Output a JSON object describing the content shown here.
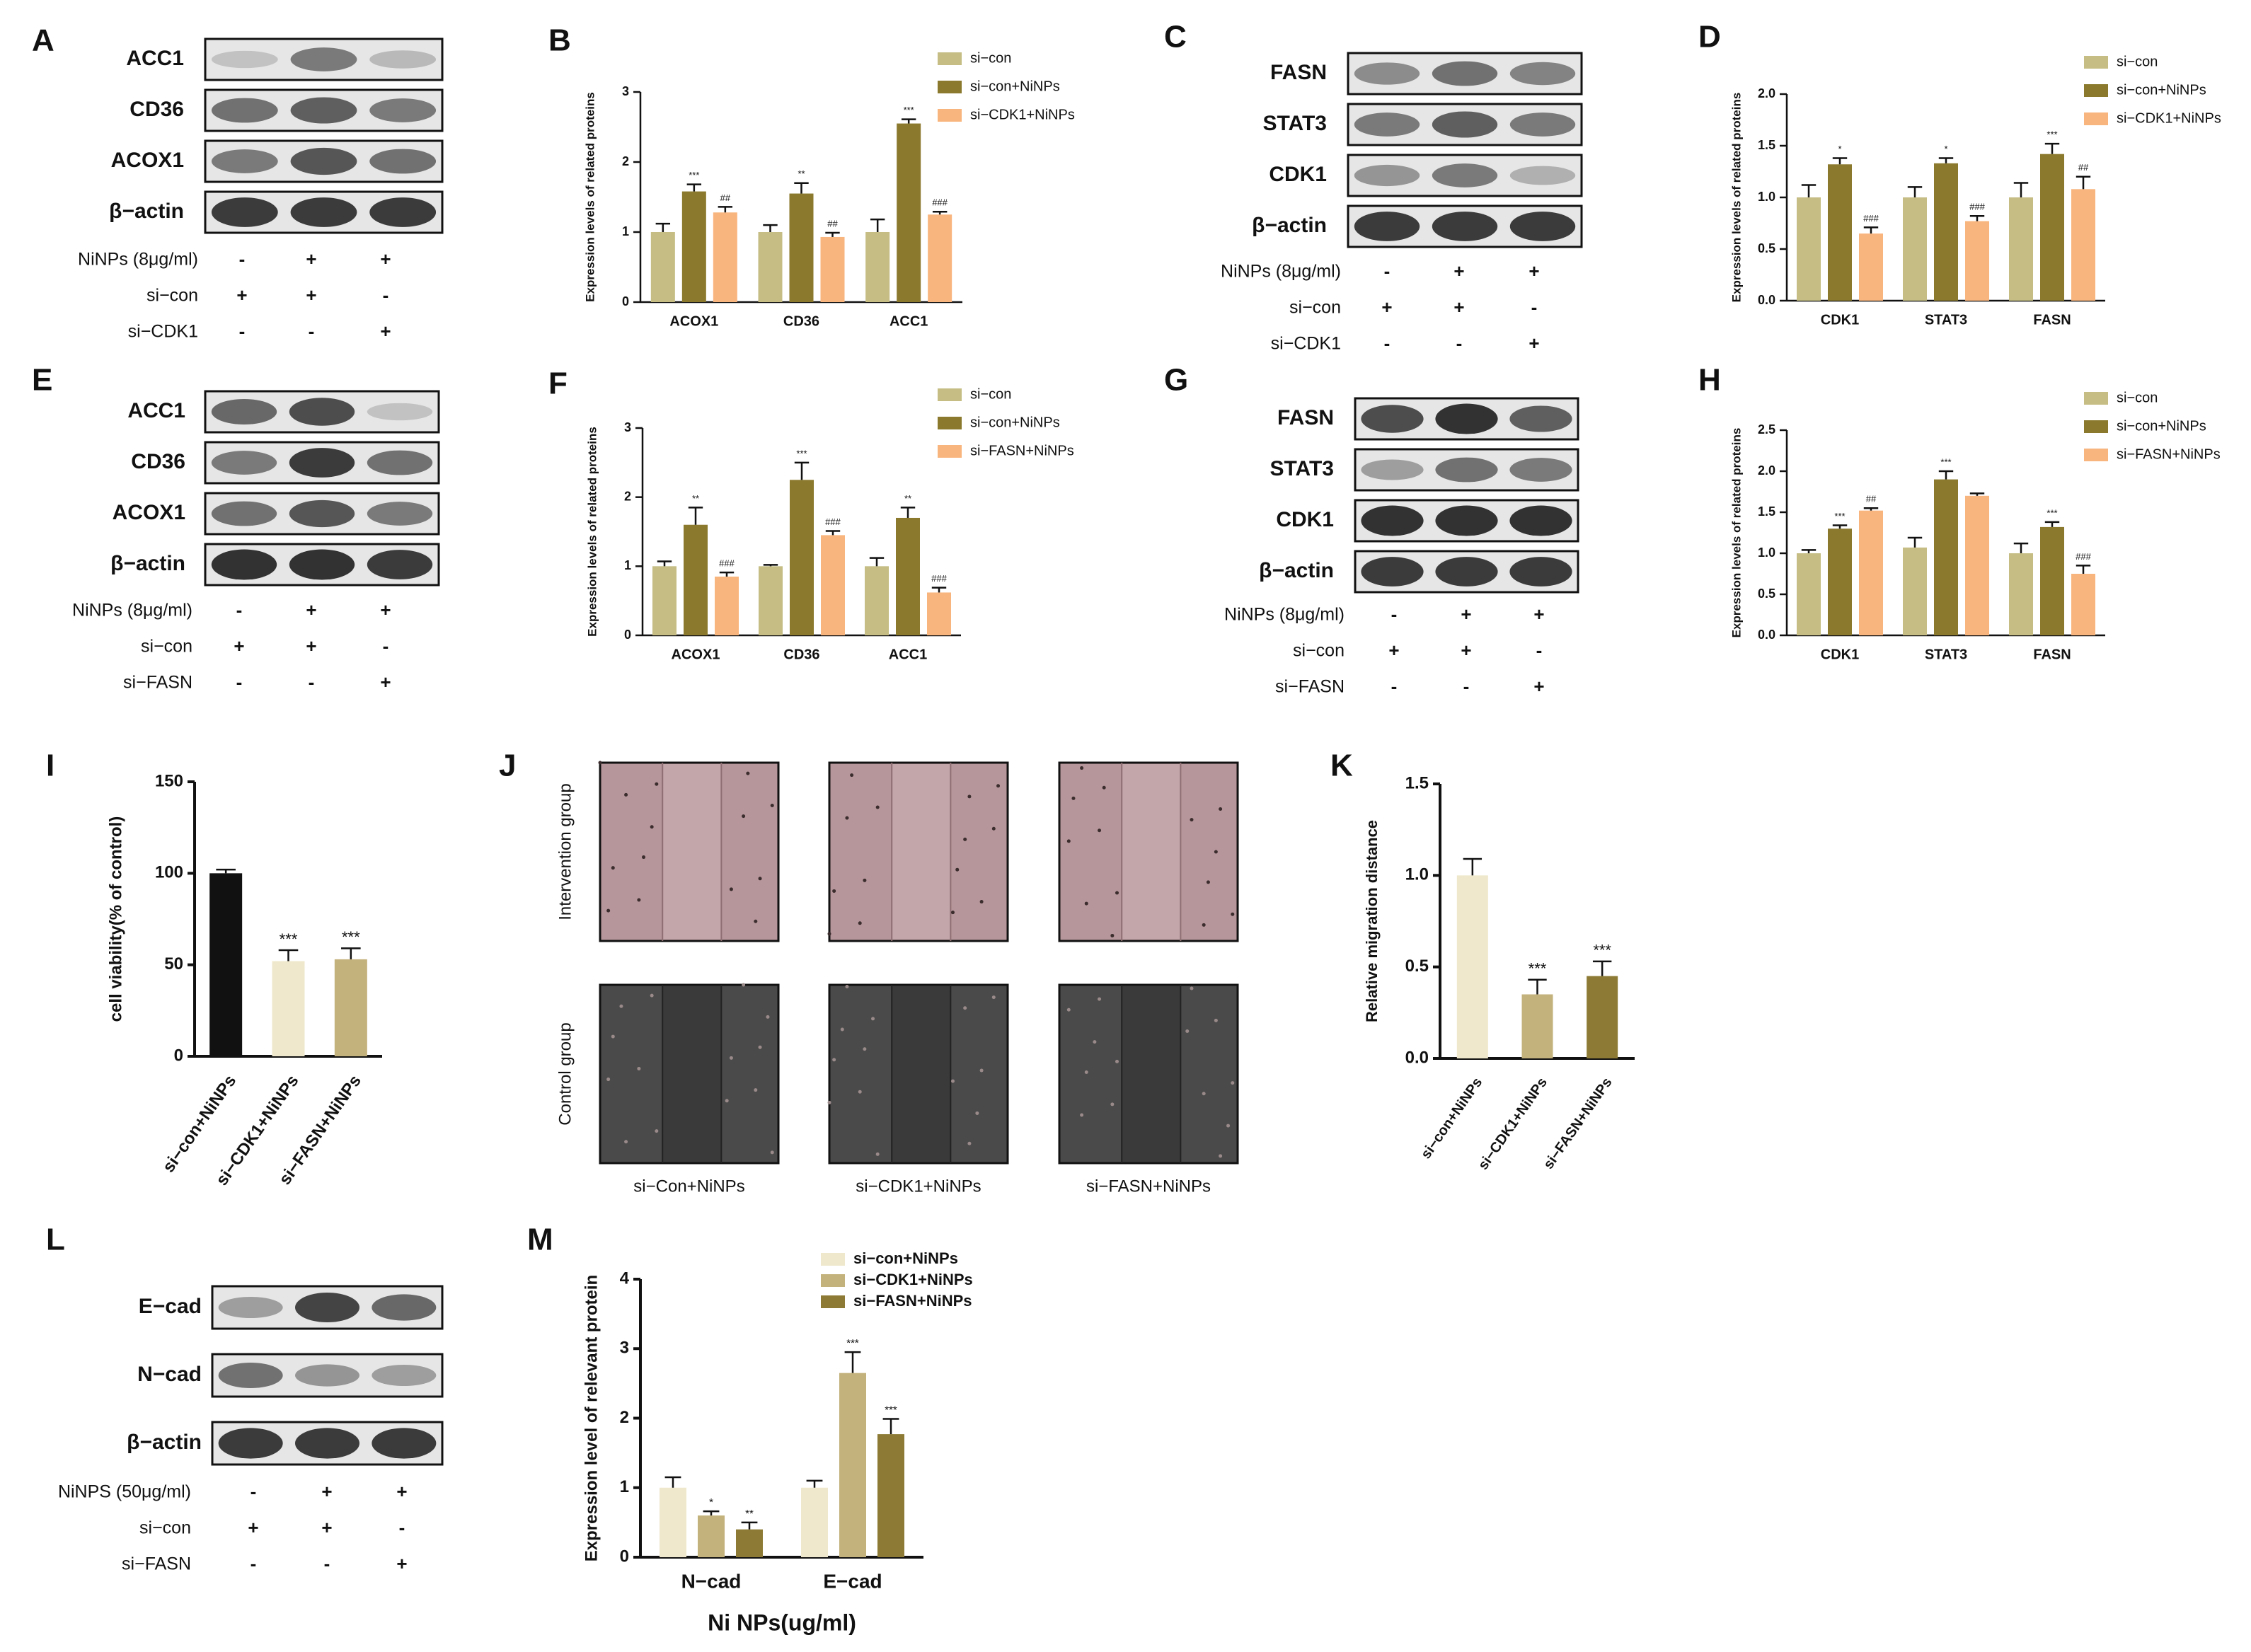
{
  "colors": {
    "si_con": "#c5bd84",
    "si_con_nps": "#8b7a2e",
    "si_knock": "#f9b57e",
    "black": "#111111",
    "cream": "#efe8cc",
    "tan": "#c4b27c",
    "olive": "#8d7b35",
    "blot_bg": "#dcdcdc",
    "migration_top": "#b6969a",
    "migration_bottom": "#4a4a4a"
  },
  "panel_letters": [
    "A",
    "B",
    "C",
    "D",
    "E",
    "F",
    "G",
    "H",
    "I",
    "J",
    "K",
    "L",
    "M"
  ],
  "blots": {
    "A": {
      "bands": [
        "ACC1",
        "CD36",
        "ACOX1",
        "β−actin"
      ],
      "intensity": [
        [
          0.15,
          0.55,
          0.2
        ],
        [
          0.6,
          0.7,
          0.55
        ],
        [
          0.55,
          0.75,
          0.6
        ],
        [
          0.9,
          0.9,
          0.9
        ]
      ],
      "conditions": [
        {
          "label": "NiNPs (8μg/ml)",
          "signs": [
            "-",
            "+",
            "+"
          ]
        },
        {
          "label": "si−con",
          "signs": [
            "+",
            "+",
            "-"
          ]
        },
        {
          "label": "si−CDK1",
          "signs": [
            "-",
            "-",
            "+"
          ]
        }
      ]
    },
    "C": {
      "bands": [
        "FASN",
        "STAT3",
        "CDK1",
        "β−actin"
      ],
      "intensity": [
        [
          0.45,
          0.6,
          0.5
        ],
        [
          0.55,
          0.7,
          0.55
        ],
        [
          0.4,
          0.55,
          0.25
        ],
        [
          0.9,
          0.9,
          0.9
        ]
      ],
      "conditions": [
        {
          "label": "NiNPs (8μg/ml)",
          "signs": [
            "-",
            "+",
            "+"
          ]
        },
        {
          "label": "si−con",
          "signs": [
            "+",
            "+",
            "-"
          ]
        },
        {
          "label": "si−CDK1",
          "signs": [
            "-",
            "-",
            "+"
          ]
        }
      ]
    },
    "E": {
      "bands": [
        "ACC1",
        "CD36",
        "ACOX1",
        "β−actin"
      ],
      "intensity": [
        [
          0.65,
          0.8,
          0.15
        ],
        [
          0.55,
          0.9,
          0.6
        ],
        [
          0.6,
          0.75,
          0.55
        ],
        [
          0.95,
          0.95,
          0.9
        ]
      ],
      "conditions": [
        {
          "label": "NiNPs (8μg/ml)",
          "signs": [
            "-",
            "+",
            "+"
          ]
        },
        {
          "label": "si−con",
          "signs": [
            "+",
            "+",
            "-"
          ]
        },
        {
          "label": "si−FASN",
          "signs": [
            "-",
            "-",
            "+"
          ]
        }
      ]
    },
    "G": {
      "bands": [
        "FASN",
        "STAT3",
        "CDK1",
        "β−actin"
      ],
      "intensity": [
        [
          0.8,
          0.95,
          0.7
        ],
        [
          0.35,
          0.6,
          0.55
        ],
        [
          0.95,
          0.95,
          0.95
        ],
        [
          0.9,
          0.9,
          0.9
        ]
      ],
      "conditions": [
        {
          "label": "NiNPs (8μg/ml)",
          "signs": [
            "-",
            "+",
            "+"
          ]
        },
        {
          "label": "si−con",
          "signs": [
            "+",
            "+",
            "-"
          ]
        },
        {
          "label": "si−FASN",
          "signs": [
            "-",
            "-",
            "+"
          ]
        }
      ]
    },
    "L": {
      "bands": [
        "E−cad",
        "N−cad",
        "β−actin"
      ],
      "intensity": [
        [
          0.35,
          0.85,
          0.65
        ],
        [
          0.6,
          0.4,
          0.35
        ],
        [
          0.9,
          0.9,
          0.9
        ]
      ],
      "conditions": [
        {
          "label": "NiNPS (50μg/ml)",
          "signs": [
            "-",
            "+",
            "+"
          ]
        },
        {
          "label": "si−con",
          "signs": [
            "+",
            "+",
            "-"
          ]
        },
        {
          "label": "si−FASN",
          "signs": [
            "-",
            "-",
            "+"
          ]
        }
      ]
    }
  },
  "migration": {
    "row_labels": [
      "Intervention group",
      "Control group"
    ],
    "col_labels": [
      "si−Con+NiNPs",
      "si−CDK1+NiNPs",
      "si−FASN+NiNPs"
    ]
  },
  "chart_data": [
    {
      "panel": "B",
      "type": "bar",
      "ylabel": "Expression levels of related proteins",
      "categories": [
        "ACOX1",
        "CD36",
        "ACC1"
      ],
      "ylim": [
        0,
        3
      ],
      "yticks": [
        0,
        1,
        2,
        3
      ],
      "series": [
        {
          "name": "si−con",
          "values": [
            1.0,
            1.0,
            1.0
          ],
          "err": [
            0.12,
            0.1,
            0.18
          ],
          "sig": [
            "",
            "",
            ""
          ]
        },
        {
          "name": "si−con+NiNPs",
          "values": [
            1.58,
            1.55,
            2.55
          ],
          "err": [
            0.1,
            0.15,
            0.06
          ],
          "sig": [
            "***",
            "**",
            "***"
          ]
        },
        {
          "name": "si−CDK1+NiNPs",
          "values": [
            1.28,
            0.93,
            1.25
          ],
          "err": [
            0.08,
            0.06,
            0.04
          ],
          "sig": [
            "##",
            "##",
            "###"
          ]
        }
      ]
    },
    {
      "panel": "D",
      "type": "bar",
      "ylabel": "Expression levels of related proteins",
      "categories": [
        "CDK1",
        "STAT3",
        "FASN"
      ],
      "ylim": [
        0,
        2.0
      ],
      "yticks": [
        0.0,
        0.5,
        1.0,
        1.5,
        2.0
      ],
      "series": [
        {
          "name": "si−con",
          "values": [
            1.0,
            1.0,
            1.0
          ],
          "err": [
            0.12,
            0.1,
            0.14
          ],
          "sig": [
            "",
            "",
            ""
          ]
        },
        {
          "name": "si−con+NiNPs",
          "values": [
            1.32,
            1.33,
            1.42
          ],
          "err": [
            0.06,
            0.05,
            0.1
          ],
          "sig": [
            "*",
            "*",
            "***"
          ]
        },
        {
          "name": "si−CDK1+NiNPs",
          "values": [
            0.65,
            0.77,
            1.08
          ],
          "err": [
            0.06,
            0.05,
            0.12
          ],
          "sig": [
            "###",
            "###",
            "##"
          ]
        }
      ]
    },
    {
      "panel": "F",
      "type": "bar",
      "ylabel": "Expression levels of related proteins",
      "categories": [
        "ACOX1",
        "CD36",
        "ACC1"
      ],
      "ylim": [
        0,
        3
      ],
      "yticks": [
        0,
        1,
        2,
        3
      ],
      "series": [
        {
          "name": "si−con",
          "values": [
            1.0,
            1.0,
            1.0
          ],
          "err": [
            0.07,
            0.02,
            0.12
          ],
          "sig": [
            "",
            "",
            ""
          ]
        },
        {
          "name": "si−con+NiNPs",
          "values": [
            1.6,
            2.25,
            1.7
          ],
          "err": [
            0.25,
            0.25,
            0.15
          ],
          "sig": [
            "**",
            "***",
            "**"
          ]
        },
        {
          "name": "si−FASN+NiNPs",
          "values": [
            0.85,
            1.45,
            0.62
          ],
          "err": [
            0.06,
            0.06,
            0.07
          ],
          "sig": [
            "###",
            "###",
            "###"
          ]
        }
      ]
    },
    {
      "panel": "H",
      "type": "bar",
      "ylabel": "Expression levels of related proteins",
      "categories": [
        "CDK1",
        "STAT3",
        "FASN"
      ],
      "ylim": [
        0,
        2.5
      ],
      "yticks": [
        0.0,
        0.5,
        1.0,
        1.5,
        2.0,
        2.5
      ],
      "series": [
        {
          "name": "si−con",
          "values": [
            1.0,
            1.07,
            1.0
          ],
          "err": [
            0.04,
            0.12,
            0.12
          ],
          "sig": [
            "",
            "",
            ""
          ]
        },
        {
          "name": "si−con+NiNPs",
          "values": [
            1.3,
            1.9,
            1.32
          ],
          "err": [
            0.04,
            0.1,
            0.06
          ],
          "sig": [
            "***",
            "***",
            "***"
          ]
        },
        {
          "name": "si−FASN+NiNPs",
          "values": [
            1.52,
            1.7,
            0.75
          ],
          "err": [
            0.03,
            0.03,
            0.1
          ],
          "sig": [
            "##",
            "",
            "###"
          ]
        }
      ]
    },
    {
      "panel": "I",
      "type": "bar",
      "ylabel": "cell viability(% of control)",
      "categories": [
        "si−con+NiNPs",
        "si−CDK1+NiNPs",
        "si−FASN+NiNPs"
      ],
      "ylim": [
        0,
        150
      ],
      "yticks": [
        0,
        50,
        100,
        150
      ],
      "values": [
        100,
        52,
        53
      ],
      "err": [
        2,
        6,
        6
      ],
      "sig": [
        "",
        "***",
        "***"
      ]
    },
    {
      "panel": "K",
      "type": "bar",
      "ylabel": "Relative migration distance",
      "categories": [
        "si−con+NiNPs",
        "si−CDK1+NiNPs",
        "si−FASN+NiNPs"
      ],
      "ylim": [
        0,
        1.5
      ],
      "yticks": [
        0.0,
        0.5,
        1.0,
        1.5
      ],
      "values": [
        1.0,
        0.35,
        0.45
      ],
      "err": [
        0.09,
        0.08,
        0.08
      ],
      "sig": [
        "",
        "***",
        "***"
      ]
    },
    {
      "panel": "M",
      "type": "bar",
      "ylabel": "Expression level of relevant protein",
      "xlabel": "Ni NPs(ug/ml)",
      "categories": [
        "N−cad",
        "E−cad"
      ],
      "ylim": [
        0,
        4
      ],
      "yticks": [
        0,
        1,
        2,
        3,
        4
      ],
      "series": [
        {
          "name": "si−con+NiNPs",
          "values": [
            1.0,
            1.0
          ],
          "err": [
            0.15,
            0.1
          ],
          "sig": [
            "",
            ""
          ]
        },
        {
          "name": "si−CDK1+NiNPs",
          "values": [
            0.6,
            2.65
          ],
          "err": [
            0.06,
            0.3
          ],
          "sig": [
            "*",
            "***"
          ]
        },
        {
          "name": "si−FASN+NiNPs",
          "values": [
            0.4,
            1.77
          ],
          "err": [
            0.1,
            0.22
          ],
          "sig": [
            "**",
            "***"
          ]
        }
      ]
    }
  ]
}
